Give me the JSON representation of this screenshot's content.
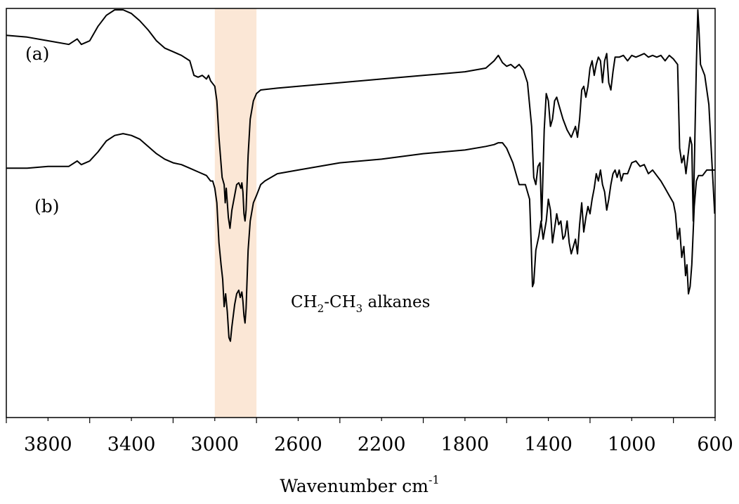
{
  "chart_data": {
    "type": "line",
    "title": "",
    "xlabel": "Wavenumber cm",
    "xlabel_superscript": "-1",
    "ylabel": "",
    "xlim": [
      4000,
      600
    ],
    "x_reversed": true,
    "ticks": [
      3800,
      3400,
      3000,
      2600,
      2200,
      1800,
      1400,
      1000,
      600
    ],
    "tick_labels": [
      "3800",
      "3400",
      "3000",
      "2600",
      "2200",
      "1800",
      "1400",
      "1000",
      "600"
    ],
    "grid": false,
    "highlight": {
      "x_range": [
        3000,
        2800
      ],
      "color": "#fbe7d6",
      "label_parts": [
        "CH",
        "2",
        "-CH",
        "3",
        " alkanes"
      ]
    },
    "series": [
      {
        "label": "(a)",
        "color": "#000000",
        "points": [
          [
            4000,
            0.93
          ],
          [
            3900,
            0.925
          ],
          [
            3800,
            0.915
          ],
          [
            3700,
            0.905
          ],
          [
            3660,
            0.92
          ],
          [
            3640,
            0.905
          ],
          [
            3600,
            0.915
          ],
          [
            3560,
            0.955
          ],
          [
            3520,
            0.985
          ],
          [
            3480,
            1.0
          ],
          [
            3440,
            1.0
          ],
          [
            3400,
            0.99
          ],
          [
            3360,
            0.97
          ],
          [
            3320,
            0.945
          ],
          [
            3280,
            0.915
          ],
          [
            3240,
            0.895
          ],
          [
            3200,
            0.885
          ],
          [
            3160,
            0.875
          ],
          [
            3120,
            0.86
          ],
          [
            3100,
            0.82
          ],
          [
            3080,
            0.815
          ],
          [
            3060,
            0.82
          ],
          [
            3040,
            0.81
          ],
          [
            3030,
            0.82
          ],
          [
            3020,
            0.805
          ],
          [
            3000,
            0.79
          ],
          [
            2990,
            0.75
          ],
          [
            2980,
            0.65
          ],
          [
            2965,
            0.54
          ],
          [
            2955,
            0.52
          ],
          [
            2950,
            0.47
          ],
          [
            2945,
            0.51
          ],
          [
            2935,
            0.43
          ],
          [
            2927,
            0.4
          ],
          [
            2918,
            0.45
          ],
          [
            2905,
            0.49
          ],
          [
            2895,
            0.52
          ],
          [
            2885,
            0.525
          ],
          [
            2875,
            0.51
          ],
          [
            2870,
            0.525
          ],
          [
            2865,
            0.5
          ],
          [
            2860,
            0.44
          ],
          [
            2855,
            0.42
          ],
          [
            2850,
            0.45
          ],
          [
            2840,
            0.6
          ],
          [
            2830,
            0.7
          ],
          [
            2815,
            0.75
          ],
          [
            2800,
            0.77
          ],
          [
            2780,
            0.78
          ],
          [
            2700,
            0.785
          ],
          [
            2600,
            0.79
          ],
          [
            2400,
            0.8
          ],
          [
            2200,
            0.81
          ],
          [
            2000,
            0.82
          ],
          [
            1900,
            0.825
          ],
          [
            1800,
            0.83
          ],
          [
            1700,
            0.84
          ],
          [
            1660,
            0.86
          ],
          [
            1640,
            0.875
          ],
          [
            1620,
            0.855
          ],
          [
            1600,
            0.845
          ],
          [
            1580,
            0.85
          ],
          [
            1560,
            0.84
          ],
          [
            1540,
            0.85
          ],
          [
            1520,
            0.835
          ],
          [
            1500,
            0.8
          ],
          [
            1480,
            0.68
          ],
          [
            1470,
            0.54
          ],
          [
            1460,
            0.52
          ],
          [
            1450,
            0.57
          ],
          [
            1440,
            0.58
          ],
          [
            1432,
            0.42
          ],
          [
            1420,
            0.67
          ],
          [
            1410,
            0.77
          ],
          [
            1400,
            0.75
          ],
          [
            1390,
            0.68
          ],
          [
            1380,
            0.7
          ],
          [
            1370,
            0.75
          ],
          [
            1360,
            0.76
          ],
          [
            1350,
            0.74
          ],
          [
            1330,
            0.7
          ],
          [
            1310,
            0.67
          ],
          [
            1290,
            0.65
          ],
          [
            1270,
            0.68
          ],
          [
            1260,
            0.65
          ],
          [
            1250,
            0.7
          ],
          [
            1240,
            0.78
          ],
          [
            1230,
            0.79
          ],
          [
            1220,
            0.76
          ],
          [
            1210,
            0.79
          ],
          [
            1200,
            0.84
          ],
          [
            1190,
            0.86
          ],
          [
            1180,
            0.82
          ],
          [
            1170,
            0.85
          ],
          [
            1160,
            0.87
          ],
          [
            1150,
            0.86
          ],
          [
            1140,
            0.8
          ],
          [
            1130,
            0.86
          ],
          [
            1120,
            0.88
          ],
          [
            1110,
            0.8
          ],
          [
            1100,
            0.78
          ],
          [
            1090,
            0.83
          ],
          [
            1080,
            0.87
          ],
          [
            1060,
            0.87
          ],
          [
            1040,
            0.875
          ],
          [
            1020,
            0.86
          ],
          [
            1000,
            0.875
          ],
          [
            980,
            0.87
          ],
          [
            960,
            0.875
          ],
          [
            940,
            0.88
          ],
          [
            920,
            0.87
          ],
          [
            900,
            0.875
          ],
          [
            880,
            0.87
          ],
          [
            860,
            0.875
          ],
          [
            840,
            0.86
          ],
          [
            820,
            0.875
          ],
          [
            800,
            0.865
          ],
          [
            780,
            0.85
          ],
          [
            770,
            0.62
          ],
          [
            760,
            0.58
          ],
          [
            750,
            0.6
          ],
          [
            740,
            0.55
          ],
          [
            730,
            0.6
          ],
          [
            720,
            0.65
          ],
          [
            712,
            0.63
          ],
          [
            705,
            0.42
          ],
          [
            698,
            0.62
          ],
          [
            690,
            0.85
          ],
          [
            683,
            1.0
          ],
          [
            678,
            0.95
          ],
          [
            670,
            0.85
          ],
          [
            650,
            0.82
          ],
          [
            630,
            0.74
          ],
          [
            615,
            0.58
          ],
          [
            602,
            0.44
          ]
        ]
      },
      {
        "label": "(b)",
        "color": "#000000",
        "points": [
          [
            4000,
            0.565
          ],
          [
            3900,
            0.565
          ],
          [
            3800,
            0.57
          ],
          [
            3700,
            0.57
          ],
          [
            3660,
            0.585
          ],
          [
            3640,
            0.575
          ],
          [
            3600,
            0.585
          ],
          [
            3560,
            0.61
          ],
          [
            3520,
            0.64
          ],
          [
            3480,
            0.655
          ],
          [
            3440,
            0.66
          ],
          [
            3400,
            0.655
          ],
          [
            3360,
            0.645
          ],
          [
            3320,
            0.625
          ],
          [
            3280,
            0.605
          ],
          [
            3240,
            0.59
          ],
          [
            3200,
            0.58
          ],
          [
            3160,
            0.575
          ],
          [
            3120,
            0.565
          ],
          [
            3080,
            0.555
          ],
          [
            3040,
            0.545
          ],
          [
            3020,
            0.53
          ],
          [
            3010,
            0.53
          ],
          [
            3000,
            0.51
          ],
          [
            2990,
            0.47
          ],
          [
            2980,
            0.36
          ],
          [
            2970,
            0.3
          ],
          [
            2962,
            0.26
          ],
          [
            2955,
            0.185
          ],
          [
            2948,
            0.22
          ],
          [
            2940,
            0.17
          ],
          [
            2932,
            0.1
          ],
          [
            2925,
            0.09
          ],
          [
            2918,
            0.13
          ],
          [
            2905,
            0.19
          ],
          [
            2895,
            0.22
          ],
          [
            2885,
            0.23
          ],
          [
            2878,
            0.21
          ],
          [
            2870,
            0.225
          ],
          [
            2865,
            0.2
          ],
          [
            2860,
            0.16
          ],
          [
            2855,
            0.14
          ],
          [
            2850,
            0.18
          ],
          [
            2840,
            0.34
          ],
          [
            2830,
            0.42
          ],
          [
            2815,
            0.47
          ],
          [
            2800,
            0.49
          ],
          [
            2780,
            0.52
          ],
          [
            2760,
            0.53
          ],
          [
            2700,
            0.55
          ],
          [
            2600,
            0.56
          ],
          [
            2400,
            0.58
          ],
          [
            2200,
            0.59
          ],
          [
            2000,
            0.605
          ],
          [
            1900,
            0.61
          ],
          [
            1800,
            0.615
          ],
          [
            1700,
            0.625
          ],
          [
            1660,
            0.63
          ],
          [
            1640,
            0.635
          ],
          [
            1620,
            0.635
          ],
          [
            1600,
            0.62
          ],
          [
            1570,
            0.58
          ],
          [
            1540,
            0.52
          ],
          [
            1510,
            0.52
          ],
          [
            1490,
            0.48
          ],
          [
            1482,
            0.35
          ],
          [
            1476,
            0.24
          ],
          [
            1470,
            0.25
          ],
          [
            1460,
            0.34
          ],
          [
            1445,
            0.38
          ],
          [
            1435,
            0.42
          ],
          [
            1425,
            0.37
          ],
          [
            1410,
            0.42
          ],
          [
            1400,
            0.48
          ],
          [
            1390,
            0.45
          ],
          [
            1380,
            0.36
          ],
          [
            1370,
            0.4
          ],
          [
            1360,
            0.44
          ],
          [
            1350,
            0.41
          ],
          [
            1340,
            0.42
          ],
          [
            1330,
            0.37
          ],
          [
            1320,
            0.38
          ],
          [
            1310,
            0.42
          ],
          [
            1300,
            0.36
          ],
          [
            1290,
            0.33
          ],
          [
            1280,
            0.35
          ],
          [
            1270,
            0.37
          ],
          [
            1260,
            0.33
          ],
          [
            1250,
            0.41
          ],
          [
            1240,
            0.47
          ],
          [
            1230,
            0.39
          ],
          [
            1220,
            0.43
          ],
          [
            1210,
            0.46
          ],
          [
            1200,
            0.44
          ],
          [
            1190,
            0.48
          ],
          [
            1180,
            0.51
          ],
          [
            1170,
            0.55
          ],
          [
            1160,
            0.53
          ],
          [
            1150,
            0.56
          ],
          [
            1140,
            0.52
          ],
          [
            1130,
            0.5
          ],
          [
            1120,
            0.45
          ],
          [
            1110,
            0.48
          ],
          [
            1100,
            0.52
          ],
          [
            1090,
            0.55
          ],
          [
            1080,
            0.56
          ],
          [
            1070,
            0.54
          ],
          [
            1060,
            0.56
          ],
          [
            1050,
            0.53
          ],
          [
            1040,
            0.55
          ],
          [
            1020,
            0.55
          ],
          [
            1000,
            0.58
          ],
          [
            980,
            0.585
          ],
          [
            960,
            0.57
          ],
          [
            940,
            0.575
          ],
          [
            920,
            0.55
          ],
          [
            900,
            0.56
          ],
          [
            880,
            0.545
          ],
          [
            860,
            0.53
          ],
          [
            840,
            0.51
          ],
          [
            820,
            0.49
          ],
          [
            800,
            0.47
          ],
          [
            790,
            0.44
          ],
          [
            780,
            0.37
          ],
          [
            770,
            0.4
          ],
          [
            760,
            0.32
          ],
          [
            750,
            0.35
          ],
          [
            742,
            0.27
          ],
          [
            735,
            0.3
          ],
          [
            728,
            0.22
          ],
          [
            720,
            0.24
          ],
          [
            712,
            0.3
          ],
          [
            700,
            0.46
          ],
          [
            690,
            0.53
          ],
          [
            680,
            0.545
          ],
          [
            660,
            0.545
          ],
          [
            640,
            0.56
          ],
          [
            600,
            0.56
          ]
        ]
      }
    ]
  }
}
